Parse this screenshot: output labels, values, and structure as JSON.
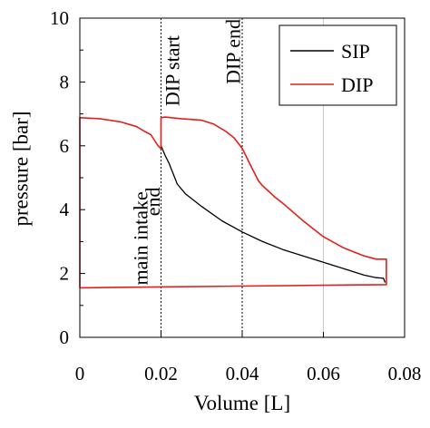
{
  "chart_data": {
    "type": "line",
    "title": "",
    "xlabel": "Volume [L]",
    "ylabel": "pressure [bar]",
    "xlim": [
      0,
      0.08
    ],
    "ylim": [
      0,
      10
    ],
    "xticks": [
      0,
      0.02,
      0.04,
      0.06,
      0.08
    ],
    "xtick_labels": [
      "0",
      "0.02",
      "0.04",
      "0.06",
      "0.08"
    ],
    "yticks": [
      0,
      2,
      4,
      6,
      8,
      10
    ],
    "ytick_labels": [
      "0",
      "2",
      "4",
      "6",
      "8",
      "10"
    ],
    "grid": {
      "vertical": true,
      "horizontal": false
    },
    "legend_position": "top-right",
    "series": [
      {
        "name": "SIP",
        "color": "#000000",
        "x": [
          0.02,
          0.021,
          0.022,
          0.024,
          0.026,
          0.03,
          0.035,
          0.04,
          0.045,
          0.05,
          0.055,
          0.06,
          0.065,
          0.07,
          0.073,
          0.0748,
          0.0752
        ],
        "y": [
          6.0,
          5.7,
          5.45,
          4.8,
          4.5,
          4.1,
          3.65,
          3.3,
          3.0,
          2.75,
          2.55,
          2.35,
          2.15,
          1.95,
          1.87,
          1.85,
          1.72
        ]
      },
      {
        "name": "DIP",
        "color": "#e0201c",
        "x": [
          0.0,
          0.0,
          0.005,
          0.01,
          0.014,
          0.016,
          0.0175,
          0.019,
          0.02,
          0.02,
          0.021,
          0.025,
          0.03,
          0.033,
          0.036,
          0.038,
          0.04,
          0.042,
          0.044,
          0.045,
          0.048,
          0.05,
          0.055,
          0.06,
          0.065,
          0.07,
          0.073,
          0.0755,
          0.0755,
          0.02,
          0.0
        ],
        "y": [
          1.55,
          6.88,
          6.85,
          6.75,
          6.6,
          6.45,
          6.35,
          6.05,
          5.9,
          6.88,
          6.9,
          6.85,
          6.8,
          6.68,
          6.45,
          6.25,
          5.92,
          5.4,
          4.9,
          4.75,
          4.4,
          4.2,
          3.65,
          3.15,
          2.8,
          2.55,
          2.45,
          2.45,
          1.65,
          1.58,
          1.55
        ]
      }
    ],
    "reference_lines": [
      {
        "x": 0.02,
        "style": "dotted"
      },
      {
        "x": 0.04,
        "style": "dotted"
      }
    ],
    "annotations": [
      {
        "text": "main intake",
        "x": 0.0155,
        "y": 3.1,
        "rotation": -90
      },
      {
        "text": "end",
        "x": 0.0185,
        "y": 4.25,
        "rotation": -90
      },
      {
        "text": "DIP start",
        "x": 0.0233,
        "y": 8.35,
        "rotation": -90
      },
      {
        "text": "DIP end",
        "x": 0.0383,
        "y": 8.95,
        "rotation": -90
      }
    ]
  }
}
